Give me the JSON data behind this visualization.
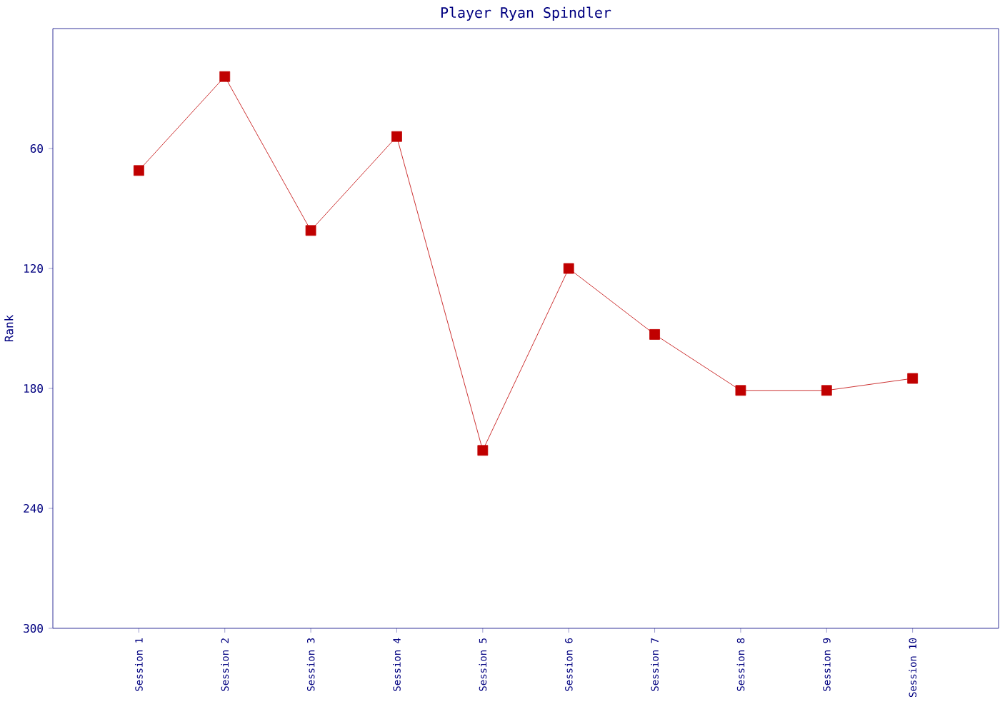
{
  "chart_data": {
    "type": "line",
    "title": "Player Ryan Spindler",
    "ylabel": "Rank",
    "categories": [
      "Session 1",
      "Session 2",
      "Session 3",
      "Session 4",
      "Session 5",
      "Session 6",
      "Session 7",
      "Session 8",
      "Session 9",
      "Session 10"
    ],
    "series": [
      {
        "color": "#c00000",
        "values": [
          71,
          24,
          101,
          54,
          211,
          120,
          153,
          181,
          181,
          175
        ]
      }
    ],
    "ylim": [
      300,
      0
    ],
    "yticks": [
      60,
      120,
      180,
      240,
      300
    ],
    "marker": "square",
    "line_style": "solid"
  }
}
